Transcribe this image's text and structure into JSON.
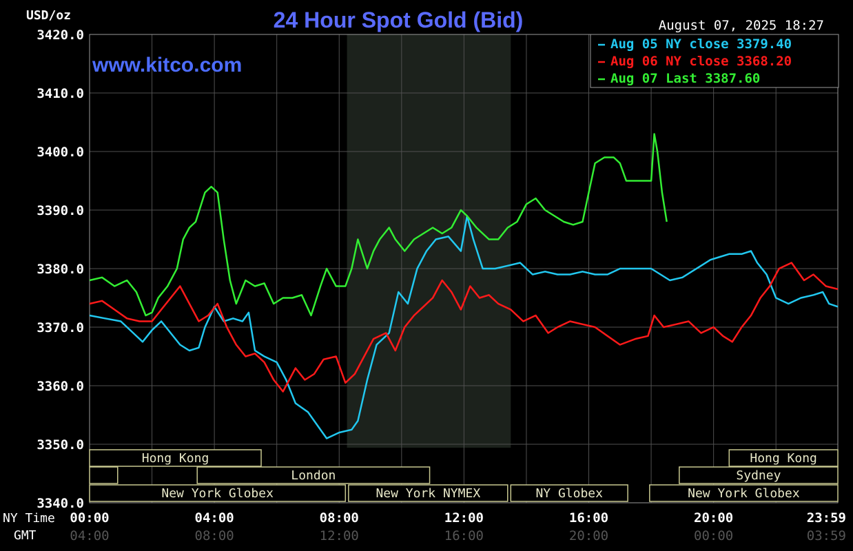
{
  "chart_data": {
    "type": "line",
    "title": "24 Hour Spot Gold (Bid)",
    "unit_label": "USD/oz",
    "timestamp": "August 07, 2025 18:27",
    "watermark": "www.kitco.com",
    "x_axis_label_ny": "NY Time",
    "x_axis_label_gmt": "GMT",
    "ny_ticks": [
      "00:00",
      "04:00",
      "08:00",
      "12:00",
      "16:00",
      "20:00",
      "23:59"
    ],
    "ny_tick_hours": [
      0,
      4,
      8,
      12,
      16,
      20,
      23.983
    ],
    "gmt_ticks": [
      "04:00",
      "08:00",
      "12:00",
      "16:00",
      "20:00",
      "00:00",
      "03:59"
    ],
    "y_ticks": [
      "3420.0",
      "3410.0",
      "3400.0",
      "3390.0",
      "3380.0",
      "3370.0",
      "3360.0",
      "3350.0",
      "3340.0"
    ],
    "ylim": [
      3340,
      3420
    ],
    "xlim_hours": [
      0,
      23.983
    ],
    "grid": true,
    "legend_position": "top-right",
    "legend": [
      {
        "text": "Aug 05 NY close 3379.40",
        "color": "#22c8f0"
      },
      {
        "text": "Aug 06 NY close 3368.20",
        "color": "#ff1a1a"
      },
      {
        "text": "Aug 07 Last 3387.60",
        "color": "#33ee33"
      }
    ],
    "nymex_shading_hours": [
      8.25,
      13.5
    ],
    "sessions": [
      {
        "label": "Hong Kong",
        "start": 0,
        "end": 5.5,
        "row": 0
      },
      {
        "label": "Hong Kong",
        "start": 20.5,
        "end": 23.983,
        "row": 0
      },
      {
        "label": "",
        "start": 0,
        "end": 0.9,
        "row": 1
      },
      {
        "label": "London",
        "start": 3.45,
        "end": 10.9,
        "row": 1
      },
      {
        "label": "Sydney",
        "start": 18.9,
        "end": 23.983,
        "row": 1
      },
      {
        "label": "New York Globex",
        "start": 0,
        "end": 8.2,
        "row": 2
      },
      {
        "label": "New York NYMEX",
        "start": 8.3,
        "end": 13.4,
        "row": 2
      },
      {
        "label": "NY Globex",
        "start": 13.5,
        "end": 17.25,
        "row": 2
      },
      {
        "label": "New York Globex",
        "start": 17.95,
        "end": 23.983,
        "row": 2
      }
    ],
    "series": [
      {
        "name": "Aug 05",
        "color": "#22c8f0",
        "x": [
          0,
          0.5,
          1,
          1.4,
          1.7,
          2,
          2.3,
          2.6,
          2.9,
          3.2,
          3.5,
          3.7,
          4,
          4.3,
          4.6,
          4.9,
          5.1,
          5.3,
          5.6,
          6,
          6.3,
          6.6,
          7,
          7.2,
          7.6,
          8,
          8.4,
          8.6,
          8.9,
          9.2,
          9.6,
          9.9,
          10.2,
          10.5,
          10.8,
          11.1,
          11.5,
          11.9,
          12.1,
          12.3,
          12.6,
          13,
          13.4,
          13.8,
          14.2,
          14.6,
          15,
          15.4,
          15.8,
          16.2,
          16.6,
          17,
          17.5,
          18,
          18.3,
          18.6,
          19,
          19.3,
          19.6,
          19.9,
          20.2,
          20.5,
          20.9,
          21.2,
          21.4,
          21.7,
          22,
          22.4,
          22.8,
          23.2,
          23.5,
          23.7,
          23.983
        ],
        "y": [
          3372,
          3371.5,
          3371,
          3369,
          3367.5,
          3369.5,
          3371,
          3369,
          3367,
          3366,
          3366.5,
          3370,
          3373.5,
          3371,
          3371.5,
          3371,
          3372.5,
          3366,
          3365,
          3364,
          3361,
          3357,
          3355.5,
          3354,
          3351,
          3352,
          3352.5,
          3354,
          3361,
          3367,
          3369,
          3376,
          3374,
          3380,
          3383,
          3385,
          3385.5,
          3383,
          3389,
          3385,
          3380,
          3380,
          3380.5,
          3381,
          3379,
          3379.5,
          3379,
          3379,
          3379.5,
          3379,
          3379,
          3380,
          3380,
          3380,
          3379,
          3378,
          3378.5,
          3379.5,
          3380.5,
          3381.5,
          3382,
          3382.5,
          3382.5,
          3383,
          3381,
          3379,
          3375,
          3374,
          3375,
          3375.5,
          3376,
          3374,
          3373.5
        ]
      },
      {
        "name": "Aug 06",
        "color": "#ff1a1a",
        "x": [
          0,
          0.4,
          0.8,
          1.2,
          1.6,
          2,
          2.3,
          2.6,
          2.9,
          3.2,
          3.5,
          3.8,
          4.1,
          4.4,
          4.7,
          5,
          5.3,
          5.6,
          5.9,
          6.2,
          6.6,
          6.9,
          7.2,
          7.5,
          7.9,
          8.2,
          8.5,
          8.8,
          9.1,
          9.5,
          9.8,
          10.1,
          10.4,
          10.7,
          11,
          11.3,
          11.6,
          11.9,
          12.2,
          12.5,
          12.8,
          13.1,
          13.5,
          13.9,
          14.3,
          14.7,
          15,
          15.4,
          15.8,
          16.2,
          16.6,
          17,
          17.5,
          17.9,
          18.1,
          18.4,
          18.8,
          19.2,
          19.6,
          20,
          20.3,
          20.6,
          20.9,
          21.2,
          21.5,
          21.8,
          22.1,
          22.5,
          22.9,
          23.2,
          23.6,
          23.983
        ],
        "y": [
          3374,
          3374.5,
          3373,
          3371.5,
          3371,
          3371,
          3373,
          3375,
          3377,
          3374,
          3371,
          3372,
          3374,
          3370,
          3367,
          3365,
          3365.5,
          3364,
          3361,
          3359,
          3363,
          3361,
          3362,
          3364.5,
          3365,
          3360.5,
          3362,
          3365,
          3368,
          3369,
          3366,
          3370,
          3372,
          3373.5,
          3375,
          3378,
          3376,
          3373,
          3377,
          3375,
          3375.5,
          3374,
          3373,
          3371,
          3372,
          3369,
          3370,
          3371,
          3370.5,
          3370,
          3368.5,
          3367,
          3368,
          3368.5,
          3372,
          3370,
          3370.5,
          3371,
          3369,
          3370,
          3368.5,
          3367.5,
          3370,
          3372,
          3375,
          3377,
          3380,
          3381,
          3378,
          3379,
          3377,
          3376.5
        ]
      },
      {
        "name": "Aug 07",
        "color": "#33ee33",
        "x": [
          0,
          0.4,
          0.8,
          1.2,
          1.5,
          1.8,
          2,
          2.2,
          2.5,
          2.8,
          3,
          3.2,
          3.4,
          3.7,
          3.9,
          4.1,
          4.3,
          4.5,
          4.7,
          5,
          5.3,
          5.6,
          5.9,
          6.2,
          6.5,
          6.8,
          7.1,
          7.4,
          7.6,
          7.9,
          8.2,
          8.4,
          8.6,
          8.9,
          9.1,
          9.3,
          9.6,
          9.8,
          10.1,
          10.4,
          10.7,
          11,
          11.3,
          11.6,
          11.9,
          12.1,
          12.4,
          12.8,
          13.1,
          13.4,
          13.7,
          14,
          14.3,
          14.6,
          14.9,
          15.2,
          15.5,
          15.8,
          16,
          16.2,
          16.5,
          16.8,
          17,
          17.2,
          17.5,
          17.8,
          18,
          18.1,
          18.2,
          18.35,
          18.5
        ],
        "y": [
          3378,
          3378.5,
          3377,
          3378,
          3376,
          3372,
          3372.5,
          3375,
          3377,
          3380,
          3385,
          3387,
          3388,
          3393,
          3394,
          3393,
          3385,
          3378,
          3374,
          3378,
          3377,
          3377.5,
          3374,
          3375,
          3375,
          3375.5,
          3372,
          3377,
          3380,
          3377,
          3377,
          3380,
          3385,
          3380,
          3383,
          3385,
          3387,
          3385,
          3383,
          3385,
          3386,
          3387,
          3386,
          3387,
          3390,
          3389,
          3387,
          3385,
          3385,
          3387,
          3388,
          3391,
          3392,
          3390,
          3389,
          3388,
          3387.5,
          3388,
          3393,
          3398,
          3399,
          3399,
          3398,
          3395,
          3395,
          3395,
          3395,
          3403,
          3400,
          3393,
          3388
        ]
      }
    ]
  }
}
